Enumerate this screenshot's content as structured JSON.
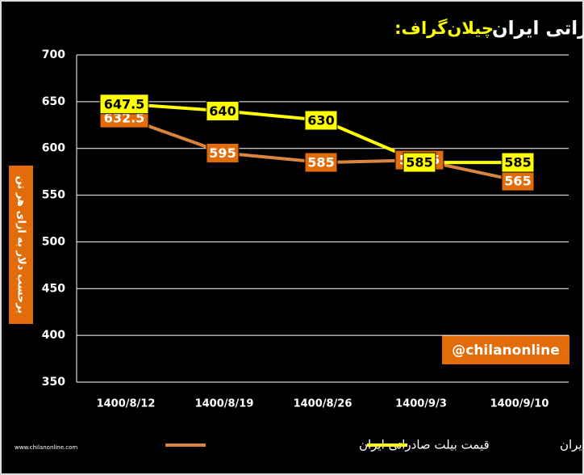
{
  "chart_data": {
    "type": "line",
    "brand": "چیلان‌گراف:",
    "title": "روند قیمت فولاد صادراتی ایران",
    "y_label": "برحسب دلار به ازای هر تن",
    "watermark": "@chilanonline",
    "site": "www.chilanonline.com",
    "categories": [
      "1400/8/12",
      "1400/8/19",
      "1400/8/26",
      "1400/9/3",
      "1400/9/10"
    ],
    "series": [
      {
        "name": "قیمت بیلت صادراتی ایران",
        "color": "#d9843f",
        "label_color": "#e36c0a",
        "values": [
          632.5,
          595,
          585,
          587.5,
          565
        ]
      },
      {
        "name": "قیمت اسلب صادراتی ایران",
        "color": "#ffff00",
        "label_color": "#ffff00",
        "values": [
          647.5,
          640,
          630,
          585,
          585
        ]
      }
    ],
    "ylim": [
      350,
      700
    ],
    "yticks": [
      350,
      400,
      450,
      500,
      550,
      600,
      650,
      700
    ],
    "grid": true
  }
}
